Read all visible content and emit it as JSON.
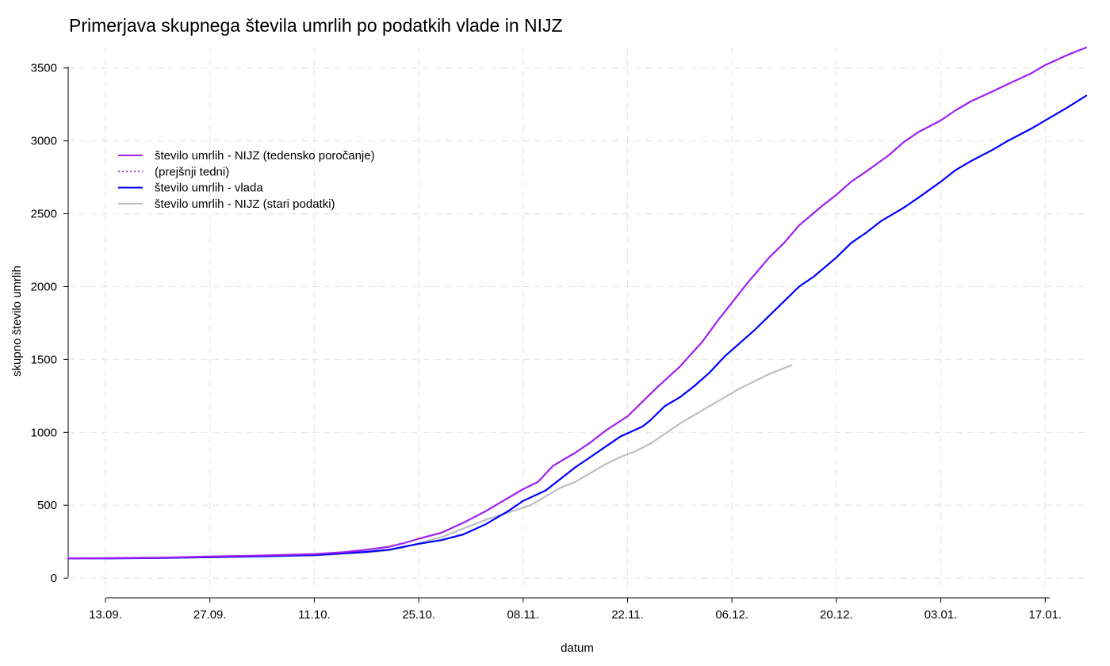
{
  "chart_data": {
    "type": "line",
    "title": "Primerjava skupnega števila umrlih po podatkih vlade in NIJZ",
    "xlabel": "datum",
    "ylabel": "skupno število umrlih",
    "x_ticks": [
      "13.09.",
      "27.09.",
      "11.10.",
      "25.10.",
      "08.11.",
      "22.11.",
      "06.12.",
      "20.12.",
      "03.01.",
      "17.01."
    ],
    "x_tick_day_offsets": [
      0,
      14,
      28,
      42,
      56,
      70,
      84,
      98,
      112,
      126
    ],
    "xlim_day_offsets": [
      -5,
      131.5
    ],
    "y_ticks": [
      0,
      500,
      1000,
      1500,
      2000,
      2500,
      3000,
      3500
    ],
    "ylim": [
      -70,
      3640
    ],
    "grid": true,
    "legend_position": "top-left",
    "legend": [
      "število umrlih - NIJZ (tedensko poročanje)",
      "(prejšnji tedni)",
      "število umrlih - vlada",
      "število umrlih - NIJZ (stari podatki)"
    ],
    "series": [
      {
        "name": "število umrlih - NIJZ (tedensko poročanje)",
        "color": "#a020f0",
        "style": "solid",
        "points": [
          [
            -5,
            135
          ],
          [
            0,
            137
          ],
          [
            7,
            140
          ],
          [
            14,
            148
          ],
          [
            21,
            155
          ],
          [
            28,
            165
          ],
          [
            32,
            178
          ],
          [
            35,
            195
          ],
          [
            38,
            215
          ],
          [
            40,
            240
          ],
          [
            42,
            270
          ],
          [
            45,
            310
          ],
          [
            48,
            380
          ],
          [
            51,
            460
          ],
          [
            54,
            550
          ],
          [
            56,
            610
          ],
          [
            58,
            660
          ],
          [
            60,
            770
          ],
          [
            63,
            860
          ],
          [
            65,
            930
          ],
          [
            67,
            1010
          ],
          [
            70,
            1110
          ],
          [
            72,
            1210
          ],
          [
            74,
            1310
          ],
          [
            77,
            1450
          ],
          [
            80,
            1620
          ],
          [
            82,
            1760
          ],
          [
            84,
            1890
          ],
          [
            86,
            2020
          ],
          [
            89,
            2200
          ],
          [
            91,
            2300
          ],
          [
            93,
            2420
          ],
          [
            96,
            2550
          ],
          [
            98,
            2630
          ],
          [
            100,
            2720
          ],
          [
            102,
            2790
          ],
          [
            105,
            2900
          ],
          [
            107,
            2990
          ],
          [
            109,
            3060
          ],
          [
            112,
            3140
          ],
          [
            114,
            3210
          ],
          [
            116,
            3270
          ],
          [
            119,
            3340
          ],
          [
            121,
            3390
          ],
          [
            124,
            3460
          ],
          [
            126,
            3520
          ],
          [
            129,
            3590
          ],
          [
            131.5,
            3640
          ]
        ]
      },
      {
        "name": "(prejšnji tedni)",
        "color": "#a020f0",
        "style": "dotted",
        "points": [
          [
            -5,
            135
          ],
          [
            0,
            137
          ],
          [
            7,
            140
          ],
          [
            14,
            148
          ],
          [
            21,
            155
          ],
          [
            28,
            165
          ],
          [
            32,
            178
          ],
          [
            35,
            195
          ],
          [
            38,
            215
          ],
          [
            40,
            240
          ],
          [
            42,
            270
          ],
          [
            45,
            310
          ],
          [
            48,
            380
          ],
          [
            51,
            460
          ],
          [
            54,
            550
          ],
          [
            56,
            610
          ],
          [
            58,
            660
          ],
          [
            60,
            770
          ],
          [
            63,
            860
          ],
          [
            65,
            930
          ],
          [
            67,
            1010
          ],
          [
            70,
            1110
          ],
          [
            72,
            1210
          ],
          [
            74,
            1310
          ],
          [
            77,
            1450
          ],
          [
            80,
            1620
          ],
          [
            82,
            1760
          ],
          [
            84,
            1890
          ],
          [
            86,
            2020
          ],
          [
            89,
            2200
          ],
          [
            91,
            2300
          ],
          [
            93,
            2420
          ],
          [
            96,
            2550
          ],
          [
            98,
            2630
          ],
          [
            100,
            2720
          ],
          [
            102,
            2790
          ],
          [
            105,
            2900
          ],
          [
            107,
            2990
          ],
          [
            109,
            3060
          ],
          [
            112,
            3140
          ],
          [
            114,
            3210
          ],
          [
            116,
            3270
          ],
          [
            119,
            3340
          ],
          [
            121,
            3390
          ],
          [
            124,
            3460
          ],
          [
            126,
            3520
          ],
          [
            129,
            3590
          ],
          [
            131.5,
            3640
          ]
        ]
      },
      {
        "name": "število umrlih - vlada",
        "color": "#0000ff",
        "style": "solid",
        "points": [
          [
            -5,
            135
          ],
          [
            0,
            135
          ],
          [
            7,
            138
          ],
          [
            14,
            143
          ],
          [
            21,
            150
          ],
          [
            28,
            158
          ],
          [
            35,
            180
          ],
          [
            38,
            195
          ],
          [
            40,
            215
          ],
          [
            42,
            235
          ],
          [
            45,
            260
          ],
          [
            48,
            300
          ],
          [
            51,
            370
          ],
          [
            54,
            460
          ],
          [
            56,
            530
          ],
          [
            59,
            600
          ],
          [
            61,
            680
          ],
          [
            63,
            760
          ],
          [
            65,
            830
          ],
          [
            67,
            900
          ],
          [
            69,
            970
          ],
          [
            72,
            1040
          ],
          [
            73,
            1080
          ],
          [
            75,
            1180
          ],
          [
            77,
            1240
          ],
          [
            79,
            1320
          ],
          [
            81,
            1410
          ],
          [
            83,
            1520
          ],
          [
            85,
            1610
          ],
          [
            87,
            1700
          ],
          [
            89,
            1800
          ],
          [
            91,
            1900
          ],
          [
            93,
            2000
          ],
          [
            95,
            2070
          ],
          [
            98,
            2200
          ],
          [
            100,
            2300
          ],
          [
            102,
            2370
          ],
          [
            104,
            2450
          ],
          [
            107,
            2540
          ],
          [
            109,
            2610
          ],
          [
            112,
            2720
          ],
          [
            114,
            2800
          ],
          [
            116,
            2860
          ],
          [
            119,
            2940
          ],
          [
            121,
            3000
          ],
          [
            124,
            3080
          ],
          [
            126,
            3140
          ],
          [
            129,
            3230
          ],
          [
            131.5,
            3310
          ]
        ]
      },
      {
        "name": "število umrlih - NIJZ (stari podatki)",
        "color": "#bebebe",
        "style": "solid",
        "points": [
          [
            -5,
            135
          ],
          [
            0,
            135
          ],
          [
            7,
            138
          ],
          [
            14,
            143
          ],
          [
            21,
            148
          ],
          [
            28,
            155
          ],
          [
            35,
            175
          ],
          [
            38,
            190
          ],
          [
            40,
            210
          ],
          [
            42,
            240
          ],
          [
            45,
            280
          ],
          [
            48,
            340
          ],
          [
            51,
            400
          ],
          [
            54,
            450
          ],
          [
            57,
            500
          ],
          [
            59,
            560
          ],
          [
            61,
            620
          ],
          [
            63,
            660
          ],
          [
            65,
            720
          ],
          [
            67,
            780
          ],
          [
            69,
            830
          ],
          [
            71,
            870
          ],
          [
            73,
            920
          ],
          [
            75,
            990
          ],
          [
            77,
            1060
          ],
          [
            79,
            1120
          ],
          [
            81,
            1180
          ],
          [
            83,
            1240
          ],
          [
            85,
            1300
          ],
          [
            87,
            1350
          ],
          [
            89,
            1400
          ],
          [
            91,
            1440
          ],
          [
            92,
            1460
          ]
        ]
      }
    ]
  }
}
